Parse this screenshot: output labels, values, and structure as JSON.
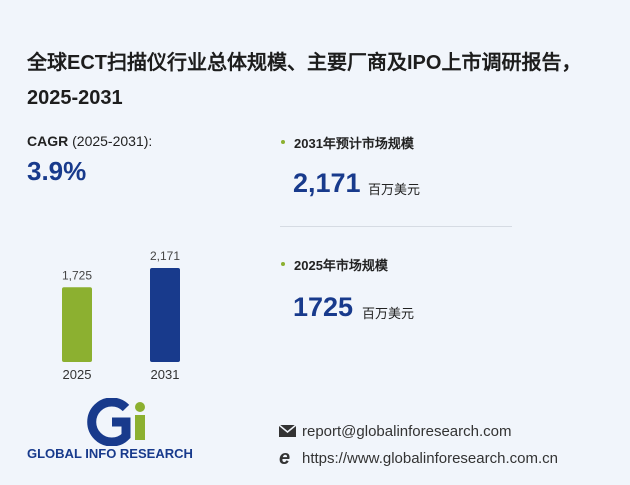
{
  "title": "全球ECT扫描仪行业总体规模、主要厂商及IPO上市调研报告，2025-2031",
  "cagr": {
    "label": "CAGR",
    "period": "(2025-2031):",
    "value": "3.9%"
  },
  "chart_data": {
    "type": "bar",
    "categories": [
      "2025",
      "2031"
    ],
    "values": [
      1725,
      2171
    ],
    "value_labels": [
      "1,725",
      "2,171"
    ],
    "colors": [
      "#8cb030",
      "#183a8c"
    ]
  },
  "metrics": [
    {
      "label": "2031年预计市场规模",
      "unit": "百万美元"
    },
    {
      "label": "2025年市场规模",
      "unit": "百万美元"
    }
  ],
  "logo": {
    "text": "GLOBAL INFO RESEARCH"
  },
  "contact": {
    "email": "report@globalinforesearch.com",
    "website": "https://www.globalinforesearch.com.cn"
  }
}
